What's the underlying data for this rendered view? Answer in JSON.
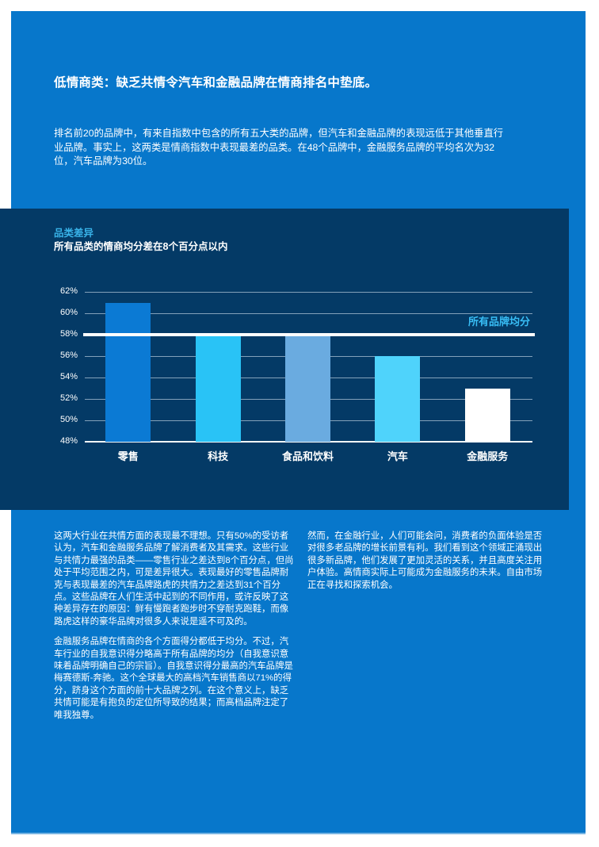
{
  "palette": {
    "page_blue": "#0777cb",
    "panel_navy": "#043a66",
    "accent_cyan": "#38b2e8",
    "text_white": "#ffffff"
  },
  "header": {
    "title": "低情商类：缺乏共情令汽车和金融品牌在情商排名中垫底。"
  },
  "intro": "排名前20的品牌中，有来自指数中包含的所有五大类的品牌，但汽车和金融品牌的表现远低于其他垂直行业品牌。事实上，这两类是情商指数中表现最差的品类。在48个品牌中，金融服务品牌的平均名次为32位，汽车品牌为30位。",
  "chart": {
    "kicker": "品类差异",
    "subtitle": "所有品类的情商均分差在8个百分点以内"
  },
  "chart_data": {
    "type": "bar",
    "title": "品类差异",
    "subtitle": "所有品类的情商均分差在8个百分点以内",
    "categories": [
      "零售",
      "科技",
      "食品和饮料",
      "汽车",
      "金融服务"
    ],
    "values": [
      61,
      58,
      58,
      56,
      53
    ],
    "bar_colors": [
      "#0b7ad4",
      "#29c3f6",
      "#6aabe0",
      "#4fd3fb",
      "#ffffff"
    ],
    "ylim": [
      48,
      62
    ],
    "ytick_values": [
      62,
      60,
      58,
      56,
      54,
      52,
      50,
      48
    ],
    "yticks": [
      "62%",
      "60%",
      "58%",
      "56%",
      "54%",
      "52%",
      "50%",
      "48%"
    ],
    "grid": true,
    "legend": false,
    "average_line": {
      "value": 58,
      "label": "所有品牌均分"
    }
  },
  "body": {
    "col1": [
      "这两大行业在共情方面的表现最不理想。只有50%的受访者认为，汽车和金融服务品牌了解消费者及其需求。这些行业与共情力最强的品类——零售行业之差达到8个百分点，但尚处于平均范围之内，可是差异很大。表现最好的零售品牌耐克与表现最差的汽车品牌路虎的共情力之差达到31个百分点。这些品牌在人们生活中起到的不同作用，或许反映了这种差异存在的原因：鲜有慢跑者跑步时不穿耐克跑鞋，而像路虎这样的豪华品牌对很多人来说是遥不可及的。",
      "金融服务品牌在情商的各个方面得分都低于均分。不过，汽车行业的自我意识得分略高于所有品牌的均分（自我意识意味着品牌明确自己的宗旨）。自我意识得分最高的汽车品牌是梅赛德斯-奔驰。这个全球最大的高档汽车销售商以71%的得分，跻身这个方面的前十大品牌之列。在这个意义上，缺乏共情可能是有抱负的定位所导致的结果；而高档品牌注定了唯我独尊。"
    ],
    "col2": [
      "然而，在金融行业，人们可能会问，消费者的负面体验是否对很多老品牌的增长前景有利。我们看到这个领域正涌现出很多新品牌，他们发展了更加灵活的关系，并且高度关注用户体验。高情商实际上可能成为金融服务的未来。自由市场正在寻找和探索机会。"
    ]
  }
}
